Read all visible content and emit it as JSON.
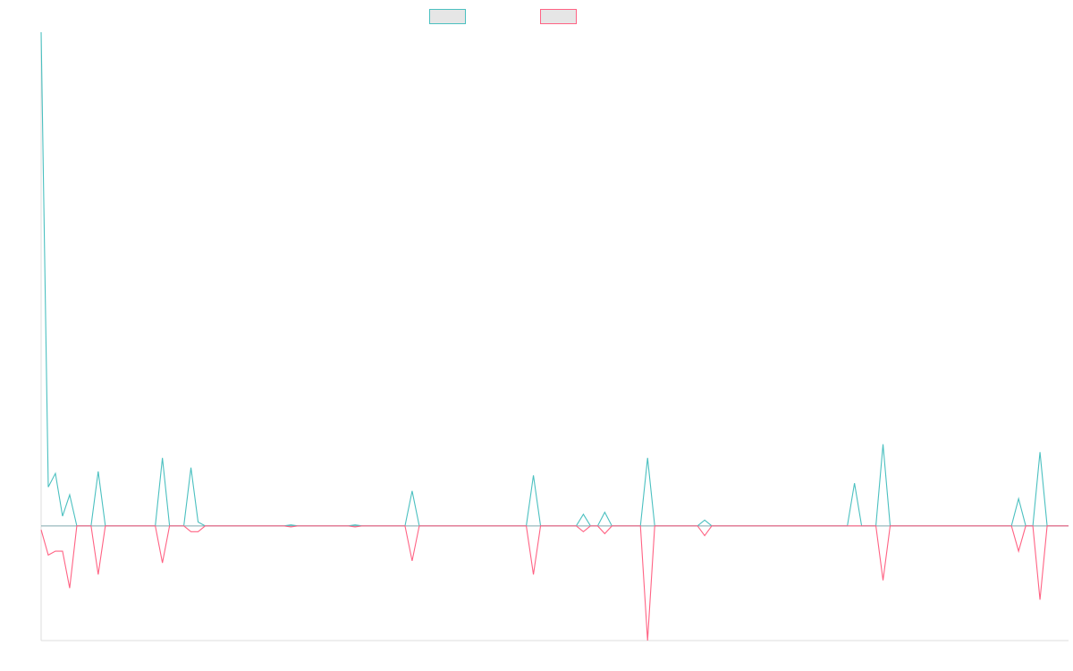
{
  "chart_data": {
    "type": "line",
    "title": "",
    "xlabel": "",
    "ylabel": "",
    "x_count": 145,
    "ylim": [
      -59,
      254
    ],
    "grid": false,
    "legend_position": "top-center",
    "legend_labels_visible": false,
    "series": [
      {
        "color": "#4bc0c0",
        "fill": "#e6e6e6",
        "spikes": [
          [
            0,
            254
          ],
          [
            1,
            20
          ],
          [
            2,
            27
          ],
          [
            3,
            5
          ],
          [
            4,
            16
          ],
          [
            5,
            0
          ],
          [
            6,
            0
          ],
          [
            7,
            0
          ],
          [
            8,
            28
          ],
          [
            9,
            0
          ],
          [
            16,
            0
          ],
          [
            17,
            35
          ],
          [
            18,
            0
          ],
          [
            20,
            0
          ],
          [
            21,
            30
          ],
          [
            22,
            2
          ],
          [
            23,
            0
          ],
          [
            34,
            0
          ],
          [
            35,
            0.5
          ],
          [
            36,
            0
          ],
          [
            43,
            0
          ],
          [
            44,
            0.5
          ],
          [
            45,
            0
          ],
          [
            51,
            0
          ],
          [
            52,
            18
          ],
          [
            53,
            0
          ],
          [
            68,
            0
          ],
          [
            69,
            26
          ],
          [
            70,
            0
          ],
          [
            75,
            0
          ],
          [
            76,
            6
          ],
          [
            77,
            0
          ],
          [
            78,
            0
          ],
          [
            79,
            7
          ],
          [
            80,
            0
          ],
          [
            84,
            0
          ],
          [
            85,
            35
          ],
          [
            86,
            0
          ],
          [
            92,
            0
          ],
          [
            93,
            3
          ],
          [
            94,
            0
          ],
          [
            113,
            0
          ],
          [
            114,
            22
          ],
          [
            115,
            0
          ],
          [
            117,
            0
          ],
          [
            118,
            42
          ],
          [
            119,
            0
          ],
          [
            136,
            0
          ],
          [
            137,
            14
          ],
          [
            138,
            0
          ],
          [
            139,
            0
          ],
          [
            140,
            38
          ],
          [
            141,
            0
          ],
          [
            144,
            0
          ]
        ]
      },
      {
        "color": "#ff6384",
        "fill": "#e6e6e6",
        "spikes": [
          [
            0,
            -2
          ],
          [
            1,
            -15
          ],
          [
            2,
            -13
          ],
          [
            3,
            -13
          ],
          [
            4,
            -32
          ],
          [
            5,
            0
          ],
          [
            6,
            0
          ],
          [
            7,
            0
          ],
          [
            8,
            -25
          ],
          [
            9,
            0
          ],
          [
            16,
            0
          ],
          [
            17,
            -19
          ],
          [
            18,
            0
          ],
          [
            20,
            0
          ],
          [
            21,
            -3
          ],
          [
            22,
            -3
          ],
          [
            23,
            0
          ],
          [
            34,
            0
          ],
          [
            35,
            -0.5
          ],
          [
            36,
            0
          ],
          [
            43,
            0
          ],
          [
            44,
            -0.5
          ],
          [
            45,
            0
          ],
          [
            51,
            0
          ],
          [
            52,
            -18
          ],
          [
            53,
            0
          ],
          [
            68,
            0
          ],
          [
            69,
            -25
          ],
          [
            70,
            0
          ],
          [
            75,
            0
          ],
          [
            76,
            -3
          ],
          [
            77,
            0
          ],
          [
            78,
            0
          ],
          [
            79,
            -4
          ],
          [
            80,
            0
          ],
          [
            84,
            0
          ],
          [
            85,
            -59
          ],
          [
            86,
            0
          ],
          [
            92,
            0
          ],
          [
            93,
            -5
          ],
          [
            94,
            0
          ],
          [
            113,
            0
          ],
          [
            114,
            0
          ],
          [
            115,
            0
          ],
          [
            117,
            0
          ],
          [
            118,
            -28
          ],
          [
            119,
            0
          ],
          [
            136,
            0
          ],
          [
            137,
            -13
          ],
          [
            138,
            0
          ],
          [
            139,
            0
          ],
          [
            140,
            -38
          ],
          [
            141,
            0
          ],
          [
            144,
            0
          ]
        ]
      }
    ]
  }
}
